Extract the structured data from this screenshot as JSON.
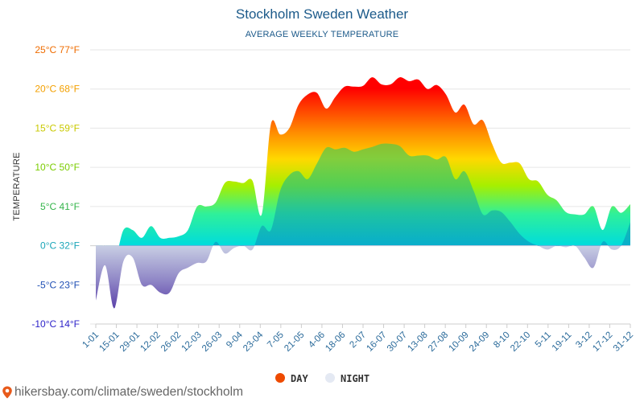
{
  "chart_data": {
    "type": "area",
    "title": "Stockholm Sweden Weather",
    "subtitle": "AVERAGE WEEKLY TEMPERATURE",
    "ylabel": "TEMPERATURE",
    "xlabel": "",
    "ylim": [
      -10,
      25
    ],
    "y_ticks": [
      {
        "value": 25,
        "label": "25°C 77°F",
        "color": "#ef6c00"
      },
      {
        "value": 20,
        "label": "20°C 68°F",
        "color": "#f3a000"
      },
      {
        "value": 15,
        "label": "15°C 59°F",
        "color": "#c9c900"
      },
      {
        "value": 10,
        "label": "10°C 50°F",
        "color": "#7acc00"
      },
      {
        "value": 5,
        "label": "5°C 41°F",
        "color": "#33b44a"
      },
      {
        "value": 0,
        "label": "0°C 32°F",
        "color": "#1aa5b8"
      },
      {
        "value": -5,
        "label": "-5°C 23°F",
        "color": "#1f4fb4"
      },
      {
        "value": -10,
        "label": "-10°C 14°F",
        "color": "#2a1fc8"
      }
    ],
    "x_labels": [
      "1-01",
      "15-01",
      "29-01",
      "12-02",
      "26-02",
      "12-03",
      "26-03",
      "9-04",
      "23-04",
      "7-05",
      "21-05",
      "4-06",
      "18-06",
      "2-07",
      "16-07",
      "30-07",
      "13-08",
      "27-08",
      "10-09",
      "24-09",
      "8-10",
      "22-10",
      "5-11",
      "19-11",
      "3-12",
      "17-12",
      "31-12"
    ],
    "series": [
      {
        "name": "DAY",
        "legend_color": "#ee4a00",
        "values": [
          -1,
          0,
          -2,
          2,
          2,
          1,
          2.5,
          1,
          1,
          1.2,
          2,
          5,
          5,
          5.5,
          8,
          8.2,
          8,
          8.3,
          4,
          15.5,
          14.2,
          15,
          18,
          19.3,
          19.5,
          17.5,
          19,
          20.3,
          20.3,
          20.4,
          21.5,
          20.6,
          20.6,
          21.5,
          21,
          21.2,
          20,
          20.5,
          19.3,
          17,
          18,
          15.5,
          16,
          13,
          10.6,
          10.6,
          10.5,
          8.5,
          8.2,
          6.5,
          5.8,
          4.3,
          4,
          4,
          5,
          2,
          5,
          4.2,
          5.3
        ]
      },
      {
        "name": "NIGHT",
        "legend_color": "#e4e9f3",
        "values": [
          -7,
          -2.5,
          -8,
          -2,
          -1.5,
          -5,
          -5,
          -6,
          -6,
          -3.5,
          -2.8,
          -2.2,
          -2,
          0.5,
          -1,
          -0.3,
          0,
          -0.5,
          2.5,
          2,
          7,
          9,
          9.5,
          8.5,
          10.5,
          12.5,
          12.3,
          12.5,
          12,
          12.3,
          12.6,
          13,
          13,
          12.7,
          11.5,
          11.5,
          11.5,
          11,
          11.3,
          8.5,
          9.5,
          7,
          4,
          4.5,
          4.3,
          3,
          1.5,
          0.5,
          0,
          -0.5,
          0,
          -0.2,
          0,
          -1.5,
          -2.8,
          0.5,
          -0.5,
          0,
          3
        ]
      }
    ],
    "legend_position": "bottom-center",
    "grid": true
  },
  "footer": {
    "text": "hikersbay.com/climate/sweden/stockholm",
    "pin_color": "#e85a1b"
  }
}
